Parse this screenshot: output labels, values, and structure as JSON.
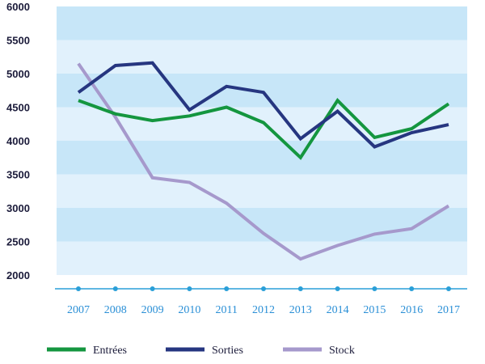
{
  "chart_data": {
    "type": "line",
    "x": [
      "2007",
      "2008",
      "2009",
      "2010",
      "2011",
      "2012",
      "2013",
      "2014",
      "2015",
      "2016",
      "2017"
    ],
    "ylim": [
      2000,
      6000
    ],
    "yticks": [
      "2000",
      "2500",
      "3000",
      "3500",
      "4000",
      "4500",
      "5000",
      "5500",
      "6000"
    ],
    "grid": "alternating horizontal bands",
    "legend_position": "bottom",
    "series": [
      {
        "name": "Entrées",
        "color": "#14963f",
        "values": [
          4600,
          4400,
          4300,
          4370,
          4500,
          4270,
          3750,
          4600,
          4050,
          4180,
          4550
        ]
      },
      {
        "name": "Sorties",
        "color": "#263680",
        "values": [
          4720,
          5120,
          5160,
          4460,
          4810,
          4720,
          4030,
          4440,
          3910,
          4120,
          4240
        ]
      },
      {
        "name": "Stock",
        "color": "#a699cc",
        "values": [
          5150,
          4350,
          3450,
          3380,
          3070,
          2620,
          2240,
          2440,
          2610,
          2690,
          3030
        ]
      }
    ]
  },
  "legend": [
    {
      "label": "Entrées",
      "color": "#14963f"
    },
    {
      "label": "Sorties",
      "color": "#263680"
    },
    {
      "label": "Stock",
      "color": "#a699cc"
    }
  ],
  "colors": {
    "band_light": "#e1f1fc",
    "band_dark": "#c7e6f8",
    "axis": "#2a9fd8"
  }
}
